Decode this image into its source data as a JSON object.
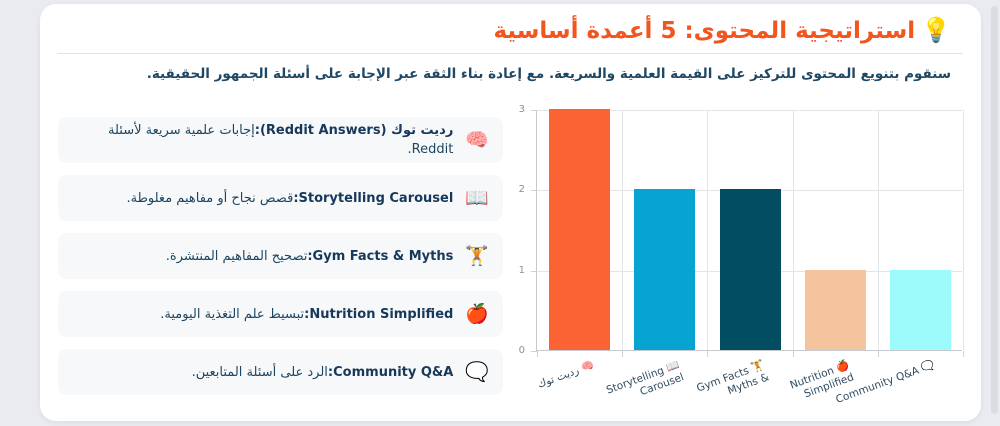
{
  "page": {
    "background": "#e9ebf0"
  },
  "header": {
    "icon": "💡",
    "title": "استراتيجية المحتوى: 5 أعمدة أساسية",
    "title_color": "#f3551f",
    "subtitle": "سنقوم بتنويع المحتوى للتركيز على القيمة العلمية والسريعة. مع إعادة بناء الثقة عبر الإجابة على أسئلة الجمهور الحقيقية."
  },
  "pillars": [
    {
      "icon": "🧠",
      "icon_name": "brain-icon",
      "name": "رديت توك (Reddit Answers):",
      "desc": "إجابات علمية سريعة لأسئلة Reddit."
    },
    {
      "icon": "📖",
      "icon_name": "open-book-icon",
      "name": "Storytelling Carousel:",
      "desc": "قصص نجاح أو مفاهيم مغلوطة."
    },
    {
      "icon": "🏋️",
      "icon_name": "weightlifter-icon",
      "name": "Gym Facts & Myths:",
      "desc": "تصحيح المفاهيم المنتشرة."
    },
    {
      "icon": "🍎",
      "icon_name": "apple-icon",
      "name": "Nutrition Simplified:",
      "desc": "تبسيط علم التغذية اليومية."
    },
    {
      "icon": "🗨️",
      "icon_name": "speech-bubble-icon",
      "name": "Community Q&A:",
      "desc": "الرد على أسئلة المتابعين."
    }
  ],
  "chart_data": {
    "type": "bar",
    "title": "",
    "xlabel": "",
    "ylabel": "",
    "categories": [
      "🧠 رديت توك",
      "📖 Storytelling Carousel",
      "🏋️ Gym Facts & Myths",
      "🍎 Nutrition Simplified",
      "🗨️ Community Q&A"
    ],
    "category_lines": [
      [
        "🧠 رديت توك"
      ],
      [
        "Storytelling 📖",
        "Carousel"
      ],
      [
        "Gym Facts 🏋️",
        "Myths &"
      ],
      [
        "Nutrition 🍎",
        "Simplified"
      ],
      [
        "Community Q&A 🗨️"
      ]
    ],
    "values": [
      3,
      2,
      2,
      1,
      1
    ],
    "bar_colors": [
      "#fb6234",
      "#06a3d3",
      "#034d62",
      "#f4c49f",
      "#9dfbfb"
    ],
    "ylim": [
      0,
      3
    ],
    "yticks": [
      0,
      1,
      2,
      3
    ],
    "grid": true,
    "legend_position": "none"
  }
}
